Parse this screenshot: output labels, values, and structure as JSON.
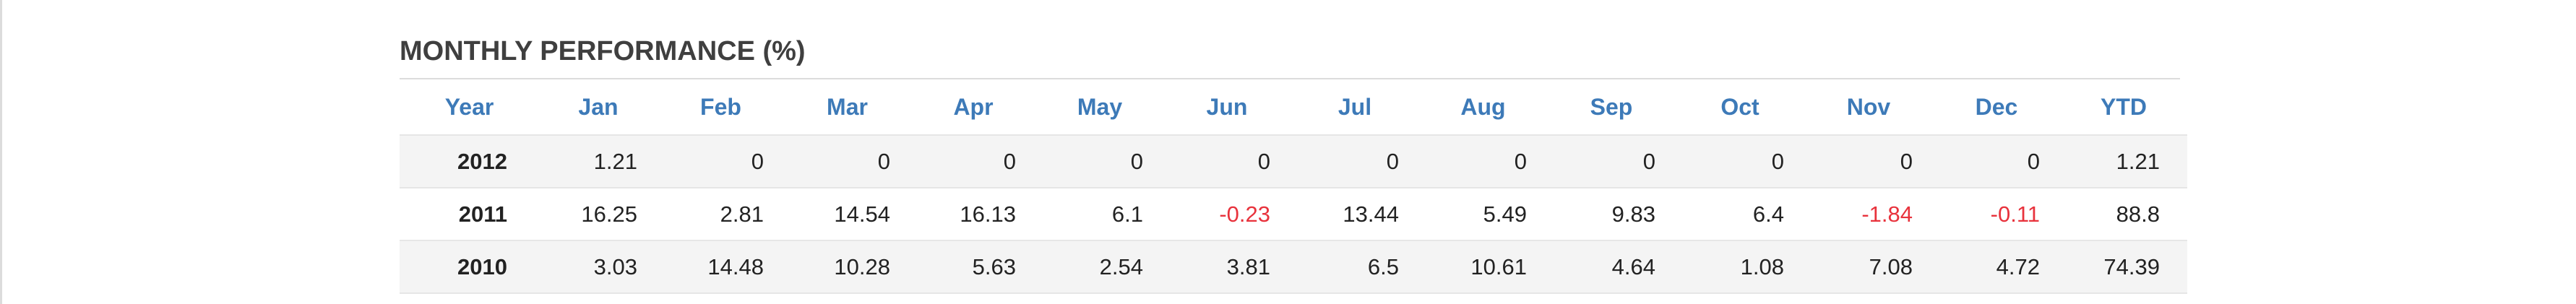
{
  "widget": {
    "title": "MONTHLY PERFORMANCE (%)"
  },
  "table": {
    "headers": [
      "Year",
      "Jan",
      "Feb",
      "Mar",
      "Apr",
      "May",
      "Jun",
      "Jul",
      "Aug",
      "Sep",
      "Oct",
      "Nov",
      "Dec",
      "YTD"
    ],
    "rows": [
      {
        "year": "2012",
        "values": [
          "1.21",
          "0",
          "0",
          "0",
          "0",
          "0",
          "0",
          "0",
          "0",
          "0",
          "0",
          "0"
        ],
        "ytd": "1.21"
      },
      {
        "year": "2011",
        "values": [
          "16.25",
          "2.81",
          "14.54",
          "16.13",
          "6.1",
          "-0.23",
          "13.44",
          "5.49",
          "9.83",
          "6.4",
          "-1.84",
          "-0.11"
        ],
        "ytd": "88.8"
      },
      {
        "year": "2010",
        "values": [
          "3.03",
          "14.48",
          "10.28",
          "5.63",
          "2.54",
          "3.81",
          "6.5",
          "10.61",
          "4.64",
          "1.08",
          "7.08",
          "4.72"
        ],
        "ytd": "74.39"
      }
    ]
  },
  "colors": {
    "header_text": "#3d7ab8",
    "negative_value": "#e8323c",
    "shaded_row": "#f4f4f4",
    "title_text": "#3f3f3f"
  }
}
